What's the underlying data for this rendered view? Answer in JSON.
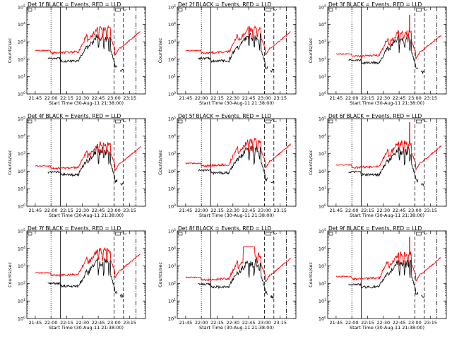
{
  "chart_data": {
    "type": "line",
    "x_ticks": [
      "21:45",
      "22:00",
      "22:15",
      "22:30",
      "22:45",
      "23:00",
      "23:15"
    ],
    "y_ticks": [
      "10^0",
      "10^1",
      "10^2",
      "10^3",
      "10^4",
      "10^5"
    ],
    "ylim_log10": [
      0,
      5
    ],
    "xlim_minutes": [
      -8,
      105
    ],
    "x_start_label": "21:38:00",
    "xlabel": "Start Time (30-Aug-11 21:38:00)",
    "ylabel": "Counts/sec",
    "title_suffix": "BLACK = Events, RED = LLD",
    "marker_lines": {
      "dotted": 15,
      "solid": 24,
      "dashed_a": 75,
      "dashed_b": 84,
      "dashdot": 96
    },
    "colors": {
      "events": "#000000",
      "lld": "#ff0000"
    },
    "panels": [
      {
        "title": "Det 1f",
        "lld_base": 2.45,
        "events_base": 2.05,
        "spike": 0,
        "plateau": false
      },
      {
        "title": "Det 2f",
        "lld_base": 2.45,
        "events_base": 2.05,
        "spike": 0,
        "plateau": false
      },
      {
        "title": "Det 3f",
        "lld_base": 2.25,
        "events_base": 1.95,
        "spike": 1.0,
        "plateau": false
      },
      {
        "title": "Det 4f",
        "lld_base": 2.25,
        "events_base": 1.95,
        "spike": 0,
        "plateau": false
      },
      {
        "title": "Det 5f",
        "lld_base": 2.4,
        "events_base": 2.05,
        "spike": 0,
        "plateau": false
      },
      {
        "title": "Det 6f",
        "lld_base": 2.3,
        "events_base": 1.95,
        "spike": 1.2,
        "plateau": false
      },
      {
        "title": "Det 7f",
        "lld_base": 2.55,
        "events_base": 2.0,
        "spike": 0,
        "plateau": false
      },
      {
        "title": "Det 8f",
        "lld_base": 2.3,
        "events_base": 1.95,
        "spike": 0,
        "plateau": true
      },
      {
        "title": "Det 9f",
        "lld_base": 2.35,
        "events_base": 1.95,
        "spike": 1.0,
        "plateau": false
      }
    ]
  }
}
